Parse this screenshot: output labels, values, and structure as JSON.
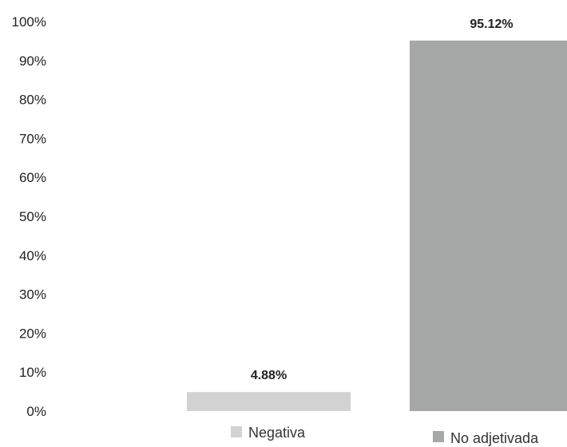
{
  "chart_data": {
    "type": "bar",
    "title": "",
    "xlabel": "",
    "ylabel": "",
    "categories": [
      "Negativa",
      "No adjetivada"
    ],
    "values": [
      4.88,
      95.12
    ],
    "data_labels": [
      "4.88%",
      "95.12%"
    ],
    "colors": [
      "#d2d2d2",
      "#a6a8a8"
    ],
    "ylim": [
      0,
      100
    ],
    "y_ticks": [
      0,
      10,
      20,
      30,
      40,
      50,
      60,
      70,
      80,
      90,
      100
    ],
    "y_tick_labels": [
      "0%",
      "10%",
      "20%",
      "30%",
      "40%",
      "50%",
      "60%",
      "70%",
      "80%",
      "90%",
      "100%"
    ],
    "grid": false,
    "legend": {
      "placement": "bottom",
      "entries": [
        "Negativa",
        "No adjetivada"
      ]
    }
  }
}
